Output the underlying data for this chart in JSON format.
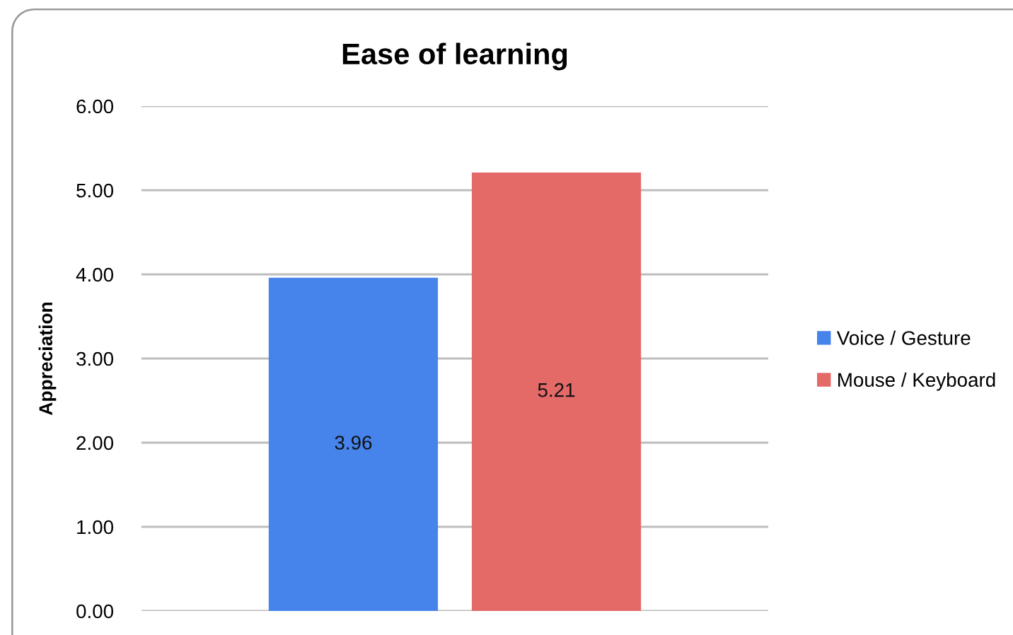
{
  "chart_data": {
    "type": "bar",
    "title": "Ease of learning",
    "ylabel": "Appreciation",
    "categories": [
      null
    ],
    "series": [
      {
        "name": "Voice / Gesture",
        "color": "#4684ec",
        "values": [
          3.96
        ]
      },
      {
        "name": "Mouse / Keyboard",
        "color": "#e46a68",
        "values": [
          5.21
        ]
      }
    ],
    "ylim": [
      0,
      6
    ],
    "yticks": [
      {
        "value": 0,
        "label": "0.00"
      },
      {
        "value": 1,
        "label": "1.00"
      },
      {
        "value": 2,
        "label": "2.00"
      },
      {
        "value": 3,
        "label": "3.00"
      },
      {
        "value": 4,
        "label": "4.00"
      },
      {
        "value": 5,
        "label": "5.00"
      },
      {
        "value": 6,
        "label": "6.00"
      }
    ],
    "grid": "y",
    "legend": "right",
    "data_labels": true
  }
}
